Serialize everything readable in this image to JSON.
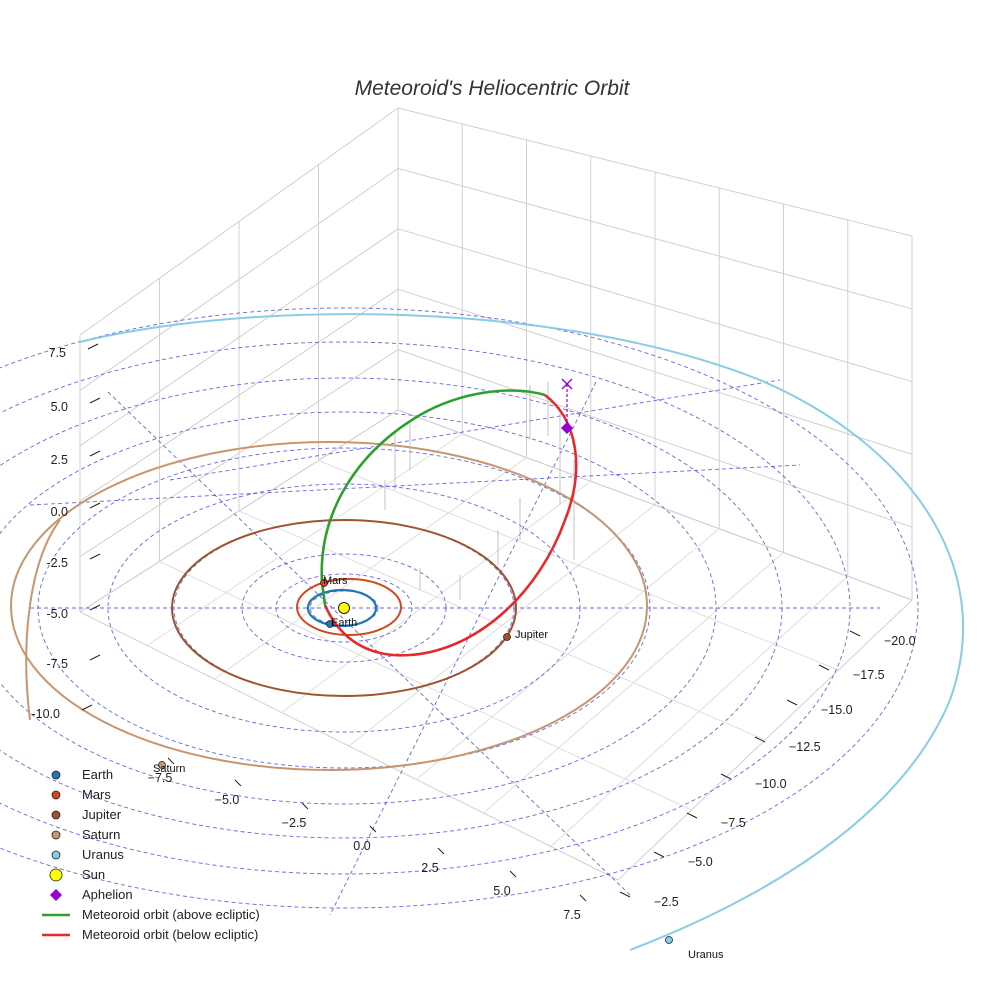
{
  "chart_data": {
    "type": "line3d",
    "title": "Meteoroid's Heliocentric Orbit",
    "xlabel": "",
    "ylabel": "",
    "zlabel": "",
    "x_ticks": [
      -7.5,
      -5.0,
      -2.5,
      0.0,
      2.5,
      5.0,
      7.5
    ],
    "y_ticks": [
      -20.0,
      -17.5,
      -15.0,
      -12.5,
      -10.0,
      -7.5,
      -5.0,
      -2.5
    ],
    "z_ticks": [
      -10.0,
      -7.5,
      -5.0,
      -2.5,
      0.0,
      2.5,
      5.0,
      7.5
    ],
    "grid": true,
    "legend_placement": "bottom-left",
    "colors": {
      "earth": "#1f77b4",
      "mars": "#d2481e",
      "jupiter": "#a0522d",
      "saturn": "#c8966e",
      "uranus": "#87cde6",
      "sun": "#ffff00",
      "aphelion": "#9400d3",
      "orbit_above": "#2ca02c",
      "orbit_below": "#e8282a",
      "ecliptic_grid": "#4040e0"
    },
    "series": [
      {
        "name": "Earth",
        "marker": "circle",
        "orbit_radius_au": 1.0
      },
      {
        "name": "Mars",
        "marker": "circle",
        "orbit_radius_au": 1.52
      },
      {
        "name": "Jupiter",
        "marker": "circle",
        "orbit_radius_au": 5.2
      },
      {
        "name": "Saturn",
        "marker": "circle",
        "orbit_radius_au": 9.5
      },
      {
        "name": "Uranus",
        "marker": "circle",
        "orbit_radius_au": 19.2
      },
      {
        "name": "Sun",
        "marker": "circle"
      },
      {
        "name": "Aphelion",
        "marker": "diamond"
      },
      {
        "name": "Meteoroid orbit (above ecliptic)",
        "marker": "line"
      },
      {
        "name": "Meteoroid orbit (below ecliptic)",
        "marker": "line"
      }
    ],
    "planet_labels": [
      "Earth",
      "Mars",
      "Jupiter",
      "Saturn",
      "Uranus"
    ]
  }
}
